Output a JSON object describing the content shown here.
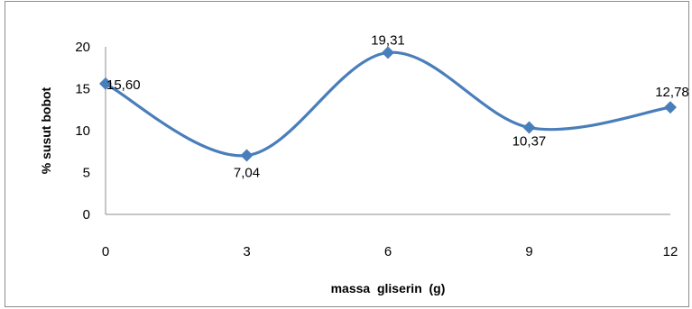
{
  "chart_data": {
    "type": "line",
    "smooth": true,
    "x": [
      0,
      3,
      6,
      9,
      12
    ],
    "categories": [
      "0",
      "3",
      "6",
      "9",
      "12"
    ],
    "series": [
      {
        "values": [
          15.6,
          7.04,
          19.31,
          10.37,
          12.78
        ],
        "color": "#4a7ebb"
      }
    ],
    "data_labels": [
      "15,60",
      "7,04",
      "19,31",
      "10,37",
      "12,78"
    ],
    "xlabel": "massa  gliserin  (g)",
    "ylabel": "% susut bobot",
    "ylim": [
      0,
      20
    ],
    "yticks": [
      "0",
      "5",
      "10",
      "15",
      "20"
    ],
    "grid": false,
    "legend": "none"
  }
}
